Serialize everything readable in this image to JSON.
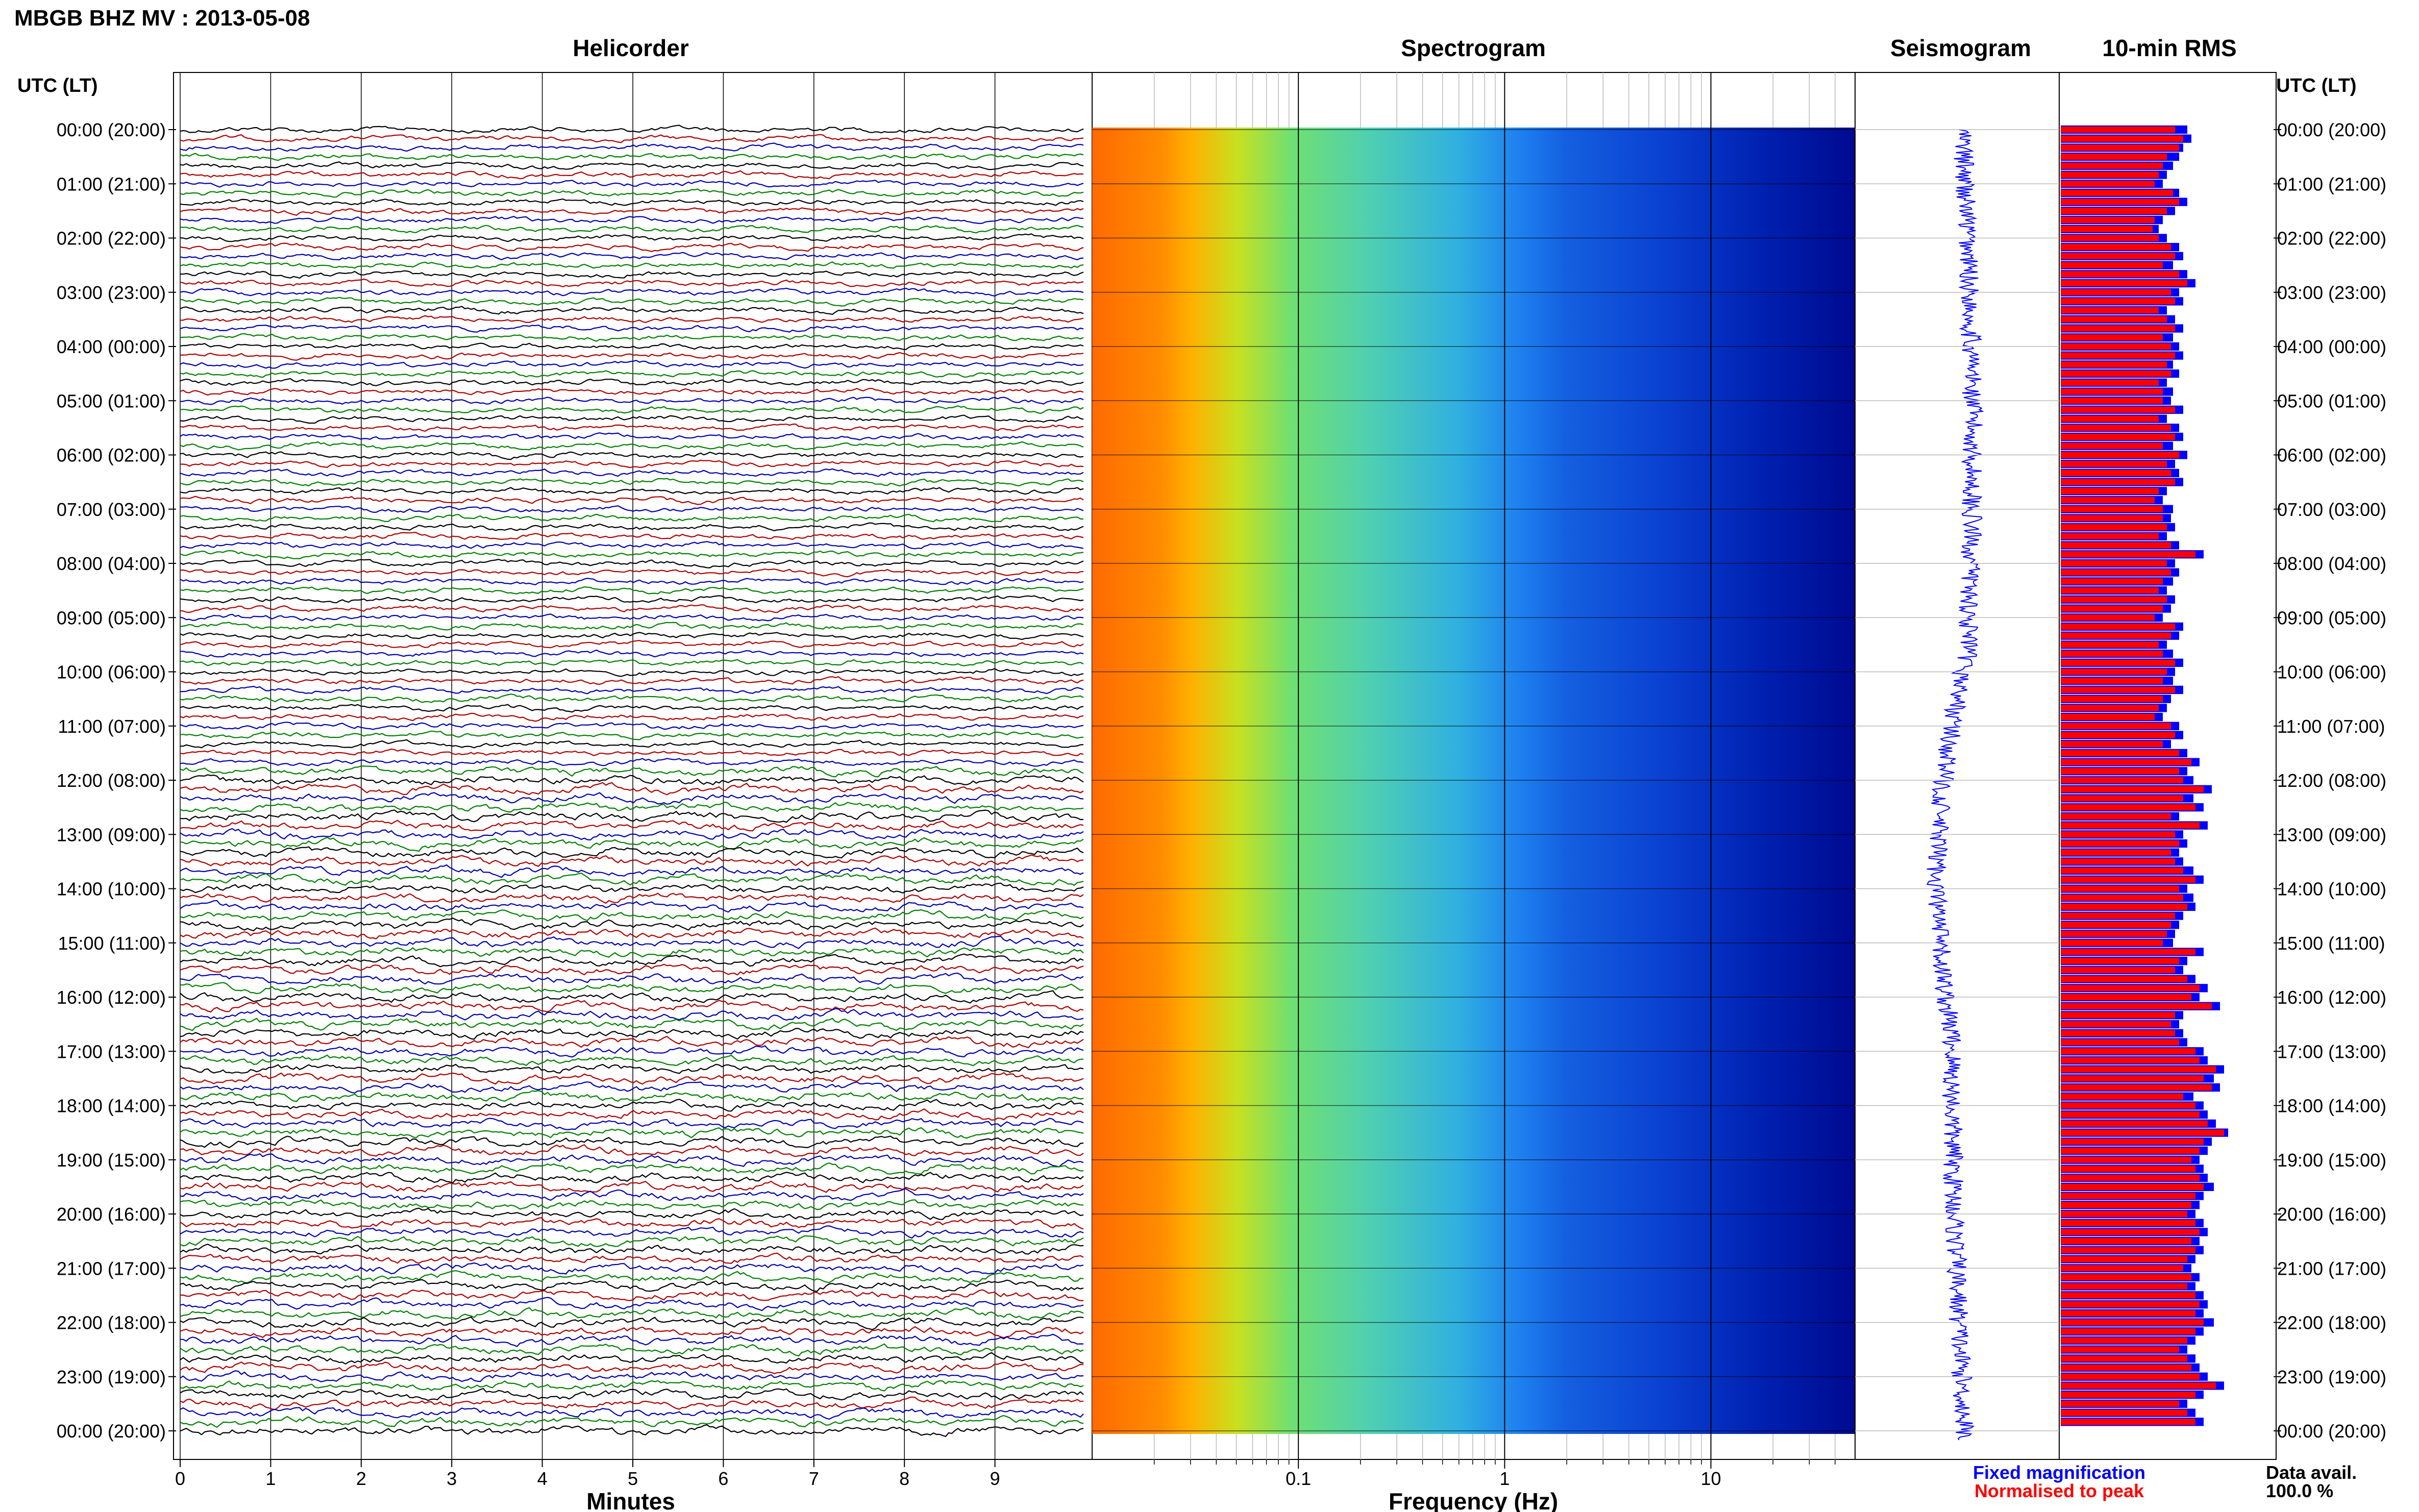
{
  "header": {
    "title": "MBGB BHZ MV : 2013-05-08"
  },
  "panels": {
    "helicorder": "Helicorder",
    "spectrogram": "Spectrogram",
    "seismogram": "Seismogram",
    "rms": "10-min RMS"
  },
  "axes": {
    "time_label_left": "UTC (LT)",
    "time_label_right": "UTC (LT)",
    "helicorder_xlabel": "Minutes",
    "spectrogram_xlabel": "Frequency (Hz)"
  },
  "legend": {
    "fixed": "Fixed magnification",
    "normalised": "Normalised to peak",
    "fixed_color": "#0000ff",
    "normalised_color": "#ff0000",
    "data_avail_label": "Data avail.",
    "data_avail_value": "100.0 %"
  },
  "colors": {
    "trace_cycle": [
      "#000000",
      "#b00000",
      "#0000b0",
      "#008000"
    ],
    "rms_fixed": "#0000ff",
    "rms_normalised": "#ff0000"
  },
  "chart_data": [
    {
      "type": "line",
      "name": "helicorder",
      "xlabel": "Minutes",
      "x_ticks": [
        "0",
        "1",
        "2",
        "3",
        "4",
        "5",
        "6",
        "7",
        "8",
        "9"
      ],
      "xlim": [
        0,
        10
      ],
      "rows_per_hour": 6,
      "row_minutes": 10
    },
    {
      "type": "heatmap",
      "name": "spectrogram",
      "xlabel": "Frequency (Hz)",
      "x_scale": "log",
      "x_ticks": [
        "0.1",
        "1",
        "10"
      ],
      "xlim": [
        0.01,
        50
      ]
    },
    {
      "type": "area",
      "name": "seismogram",
      "note_none": ""
    },
    {
      "type": "bar",
      "name": "10-min RMS",
      "series": [
        {
          "name": "Fixed magnification",
          "color": "#0000ff"
        },
        {
          "name": "Normalised to peak",
          "color": "#ff0000"
        }
      ],
      "rms_fixed": [
        0.62,
        0.64,
        0.6,
        0.58,
        0.55,
        0.52,
        0.5,
        0.58,
        0.62,
        0.56,
        0.5,
        0.48,
        0.52,
        0.58,
        0.6,
        0.55,
        0.62,
        0.66,
        0.58,
        0.6,
        0.52,
        0.56,
        0.6,
        0.55,
        0.58,
        0.6,
        0.55,
        0.58,
        0.52,
        0.55,
        0.54,
        0.6,
        0.52,
        0.58,
        0.6,
        0.55,
        0.62,
        0.56,
        0.58,
        0.6,
        0.52,
        0.5,
        0.55,
        0.54,
        0.56,
        0.52,
        0.58,
        0.7,
        0.56,
        0.58,
        0.55,
        0.52,
        0.56,
        0.54,
        0.5,
        0.6,
        0.58,
        0.52,
        0.55,
        0.6,
        0.56,
        0.55,
        0.6,
        0.54,
        0.52,
        0.5,
        0.58,
        0.6,
        0.54,
        0.62,
        0.68,
        0.62,
        0.65,
        0.74,
        0.65,
        0.7,
        0.58,
        0.72,
        0.6,
        0.62,
        0.58,
        0.6,
        0.65,
        0.7,
        0.62,
        0.65,
        0.66,
        0.6,
        0.58,
        0.56,
        0.55,
        0.7,
        0.62,
        0.6,
        0.66,
        0.72,
        0.68,
        0.78,
        0.6,
        0.58,
        0.6,
        0.62,
        0.7,
        0.72,
        0.8,
        0.75,
        0.78,
        0.65,
        0.7,
        0.72,
        0.76,
        0.82,
        0.74,
        0.72,
        0.68,
        0.7,
        0.72,
        0.75,
        0.7,
        0.68,
        0.66,
        0.7,
        0.72,
        0.68,
        0.7,
        0.66,
        0.64,
        0.68,
        0.66,
        0.7,
        0.72,
        0.7,
        0.75,
        0.7,
        0.66,
        0.62,
        0.66,
        0.68,
        0.72,
        0.8,
        0.7,
        0.62,
        0.66,
        0.7
      ],
      "rms_normalised": [
        0.56,
        0.6,
        0.58,
        0.52,
        0.5,
        0.48,
        0.46,
        0.55,
        0.58,
        0.52,
        0.46,
        0.45,
        0.48,
        0.54,
        0.56,
        0.5,
        0.58,
        0.62,
        0.54,
        0.56,
        0.48,
        0.52,
        0.56,
        0.5,
        0.54,
        0.56,
        0.52,
        0.54,
        0.48,
        0.5,
        0.5,
        0.56,
        0.48,
        0.54,
        0.56,
        0.5,
        0.58,
        0.52,
        0.54,
        0.56,
        0.48,
        0.46,
        0.5,
        0.5,
        0.52,
        0.48,
        0.54,
        0.66,
        0.52,
        0.54,
        0.5,
        0.48,
        0.52,
        0.5,
        0.46,
        0.56,
        0.54,
        0.48,
        0.5,
        0.56,
        0.52,
        0.5,
        0.56,
        0.5,
        0.48,
        0.46,
        0.54,
        0.56,
        0.5,
        0.58,
        0.64,
        0.58,
        0.6,
        0.7,
        0.6,
        0.66,
        0.54,
        0.68,
        0.56,
        0.58,
        0.54,
        0.56,
        0.6,
        0.66,
        0.58,
        0.6,
        0.62,
        0.56,
        0.54,
        0.52,
        0.5,
        0.66,
        0.58,
        0.56,
        0.62,
        0.68,
        0.64,
        0.74,
        0.56,
        0.54,
        0.56,
        0.58,
        0.66,
        0.68,
        0.76,
        0.7,
        0.74,
        0.6,
        0.66,
        0.68,
        0.72,
        0.8,
        0.7,
        0.68,
        0.64,
        0.66,
        0.68,
        0.7,
        0.66,
        0.64,
        0.62,
        0.66,
        0.68,
        0.64,
        0.66,
        0.62,
        0.6,
        0.64,
        0.62,
        0.66,
        0.68,
        0.66,
        0.7,
        0.66,
        0.62,
        0.58,
        0.62,
        0.64,
        0.68,
        0.76,
        0.66,
        0.58,
        0.62,
        0.66
      ]
    }
  ],
  "time_ticks": {
    "left": [
      "00:00 (20:00)",
      "01:00 (21:00)",
      "02:00 (22:00)",
      "03:00 (23:00)",
      "04:00 (00:00)",
      "05:00 (01:00)",
      "06:00 (02:00)",
      "07:00 (03:00)",
      "08:00 (04:00)",
      "09:00 (05:00)",
      "10:00 (06:00)",
      "11:00 (07:00)",
      "12:00 (08:00)",
      "13:00 (09:00)",
      "14:00 (10:00)",
      "15:00 (11:00)",
      "16:00 (12:00)",
      "17:00 (13:00)",
      "18:00 (14:00)",
      "19:00 (15:00)",
      "20:00 (16:00)",
      "21:00 (17:00)",
      "22:00 (18:00)",
      "23:00 (19:00)",
      "00:00 (20:00)"
    ]
  }
}
